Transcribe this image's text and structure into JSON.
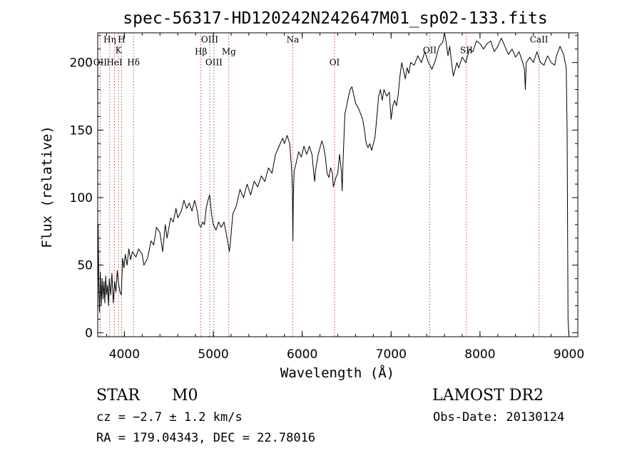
{
  "chart_data": {
    "type": "line",
    "title": "spec-56317-HD120242N242647M01_sp02-133.fits",
    "xlabel": "Wavelength (Å)",
    "ylabel": "Flux (relative)",
    "xlim": [
      3700,
      9100
    ],
    "ylim": [
      -3,
      222
    ],
    "xticks": [
      4000,
      5000,
      6000,
      7000,
      8000,
      9000
    ],
    "yticks": [
      0,
      50,
      100,
      150,
      200
    ],
    "grid": false,
    "series": [
      {
        "points": [
          [
            3700,
            20
          ],
          [
            3705,
            80
          ],
          [
            3712,
            35
          ],
          [
            3720,
            15
          ],
          [
            3730,
            45
          ],
          [
            3740,
            20
          ],
          [
            3750,
            40
          ],
          [
            3760,
            25
          ],
          [
            3770,
            38
          ],
          [
            3780,
            22
          ],
          [
            3790,
            42
          ],
          [
            3800,
            28
          ],
          [
            3810,
            35
          ],
          [
            3820,
            20
          ],
          [
            3830,
            40
          ],
          [
            3845,
            28
          ],
          [
            3860,
            44
          ],
          [
            3875,
            22
          ],
          [
            3890,
            38
          ],
          [
            3905,
            30
          ],
          [
            3920,
            46
          ],
          [
            3935,
            36
          ],
          [
            3950,
            30
          ],
          [
            3965,
            28
          ],
          [
            3980,
            55
          ],
          [
            3995,
            48
          ],
          [
            4010,
            58
          ],
          [
            4030,
            50
          ],
          [
            4050,
            62
          ],
          [
            4070,
            54
          ],
          [
            4090,
            60
          ],
          [
            4110,
            58
          ],
          [
            4130,
            56
          ],
          [
            4160,
            62
          ],
          [
            4200,
            58
          ],
          [
            4220,
            50
          ],
          [
            4260,
            55
          ],
          [
            4300,
            68
          ],
          [
            4330,
            65
          ],
          [
            4360,
            78
          ],
          [
            4400,
            74
          ],
          [
            4430,
            60
          ],
          [
            4460,
            80
          ],
          [
            4480,
            70
          ],
          [
            4520,
            85
          ],
          [
            4550,
            82
          ],
          [
            4580,
            92
          ],
          [
            4600,
            85
          ],
          [
            4640,
            90
          ],
          [
            4670,
            98
          ],
          [
            4700,
            92
          ],
          [
            4730,
            96
          ],
          [
            4760,
            90
          ],
          [
            4790,
            98
          ],
          [
            4820,
            90
          ],
          [
            4840,
            80
          ],
          [
            4860,
            78
          ],
          [
            4880,
            82
          ],
          [
            4900,
            80
          ],
          [
            4920,
            92
          ],
          [
            4940,
            98
          ],
          [
            4960,
            102
          ],
          [
            4980,
            88
          ],
          [
            5000,
            80
          ],
          [
            5030,
            76
          ],
          [
            5060,
            82
          ],
          [
            5090,
            78
          ],
          [
            5120,
            82
          ],
          [
            5150,
            72
          ],
          [
            5180,
            60
          ],
          [
            5190,
            65
          ],
          [
            5220,
            88
          ],
          [
            5260,
            94
          ],
          [
            5300,
            106
          ],
          [
            5340,
            100
          ],
          [
            5380,
            110
          ],
          [
            5420,
            102
          ],
          [
            5460,
            112
          ],
          [
            5500,
            108
          ],
          [
            5540,
            116
          ],
          [
            5580,
            112
          ],
          [
            5620,
            122
          ],
          [
            5660,
            118
          ],
          [
            5700,
            132
          ],
          [
            5740,
            138
          ],
          [
            5780,
            144
          ],
          [
            5800,
            140
          ],
          [
            5830,
            146
          ],
          [
            5860,
            140
          ],
          [
            5880,
            122
          ],
          [
            5890,
            106
          ],
          [
            5895,
            68
          ],
          [
            5900,
            100
          ],
          [
            5910,
            120
          ],
          [
            5930,
            125
          ],
          [
            5960,
            134
          ],
          [
            5990,
            130
          ],
          [
            6020,
            138
          ],
          [
            6050,
            132
          ],
          [
            6080,
            138
          ],
          [
            6110,
            132
          ],
          [
            6130,
            118
          ],
          [
            6140,
            112
          ],
          [
            6150,
            120
          ],
          [
            6180,
            132
          ],
          [
            6220,
            142
          ],
          [
            6240,
            138
          ],
          [
            6260,
            130
          ],
          [
            6280,
            118
          ],
          [
            6300,
            115
          ],
          [
            6320,
            122
          ],
          [
            6340,
            118
          ],
          [
            6350,
            108
          ],
          [
            6360,
            110
          ],
          [
            6380,
            115
          ],
          [
            6400,
            118
          ],
          [
            6420,
            132
          ],
          [
            6440,
            120
          ],
          [
            6450,
            105
          ],
          [
            6460,
            128
          ],
          [
            6480,
            162
          ],
          [
            6500,
            168
          ],
          [
            6520,
            175
          ],
          [
            6540,
            180
          ],
          [
            6560,
            182
          ],
          [
            6580,
            176
          ],
          [
            6600,
            170
          ],
          [
            6640,
            165
          ],
          [
            6680,
            158
          ],
          [
            6700,
            150
          ],
          [
            6720,
            140
          ],
          [
            6740,
            137
          ],
          [
            6760,
            140
          ],
          [
            6780,
            135
          ],
          [
            6800,
            140
          ],
          [
            6820,
            145
          ],
          [
            6840,
            160
          ],
          [
            6860,
            175
          ],
          [
            6880,
            180
          ],
          [
            6900,
            172
          ],
          [
            6920,
            180
          ],
          [
            6950,
            175
          ],
          [
            6980,
            178
          ],
          [
            7000,
            158
          ],
          [
            7020,
            168
          ],
          [
            7040,
            172
          ],
          [
            7060,
            168
          ],
          [
            7080,
            176
          ],
          [
            7100,
            190
          ],
          [
            7120,
            200
          ],
          [
            7140,
            194
          ],
          [
            7160,
            188
          ],
          [
            7180,
            196
          ],
          [
            7200,
            192
          ],
          [
            7220,
            200
          ],
          [
            7260,
            198
          ],
          [
            7300,
            205
          ],
          [
            7340,
            200
          ],
          [
            7380,
            208
          ],
          [
            7420,
            200
          ],
          [
            7460,
            195
          ],
          [
            7500,
            202
          ],
          [
            7540,
            212
          ],
          [
            7580,
            215
          ],
          [
            7600,
            222
          ],
          [
            7620,
            215
          ],
          [
            7640,
            205
          ],
          [
            7660,
            212
          ],
          [
            7680,
            200
          ],
          [
            7700,
            190
          ],
          [
            7720,
            195
          ],
          [
            7740,
            200
          ],
          [
            7760,
            196
          ],
          [
            7800,
            204
          ],
          [
            7840,
            200
          ],
          [
            7880,
            210
          ],
          [
            7920,
            208
          ],
          [
            7960,
            216
          ],
          [
            8000,
            214
          ],
          [
            8040,
            210
          ],
          [
            8080,
            214
          ],
          [
            8120,
            216
          ],
          [
            8160,
            208
          ],
          [
            8200,
            212
          ],
          [
            8240,
            218
          ],
          [
            8280,
            212
          ],
          [
            8320,
            206
          ],
          [
            8360,
            210
          ],
          [
            8400,
            204
          ],
          [
            8440,
            208
          ],
          [
            8480,
            200
          ],
          [
            8500,
            195
          ],
          [
            8510,
            180
          ],
          [
            8520,
            200
          ],
          [
            8560,
            204
          ],
          [
            8600,
            200
          ],
          [
            8640,
            208
          ],
          [
            8680,
            200
          ],
          [
            8720,
            198
          ],
          [
            8760,
            205
          ],
          [
            8800,
            200
          ],
          [
            8840,
            198
          ],
          [
            8860,
            205
          ],
          [
            8900,
            212
          ],
          [
            8940,
            206
          ],
          [
            8970,
            196
          ],
          [
            8980,
            150
          ],
          [
            8990,
            10
          ],
          [
            8998,
            0
          ]
        ]
      }
    ],
    "annotations": [
      {
        "label": "OII",
        "x": 3727,
        "y": 198
      },
      {
        "label": "Hη",
        "x": 3835,
        "y": 215
      },
      {
        "label": "HeI",
        "x": 3889,
        "y": 198
      },
      {
        "label": "K",
        "x": 3934,
        "y": 207
      },
      {
        "label": "H",
        "x": 3969,
        "y": 215
      },
      {
        "label": "Hδ",
        "x": 4102,
        "y": 198
      },
      {
        "label": "Hβ",
        "x": 4861,
        "y": 206
      },
      {
        "label": "OIII",
        "x": 4959,
        "y": 215
      },
      {
        "label": "OIII",
        "x": 5007,
        "y": 198
      },
      {
        "label": "Mg",
        "x": 5175,
        "y": 206
      },
      {
        "label": "Na",
        "x": 5894,
        "y": 215
      },
      {
        "label": "OI",
        "x": 6364,
        "y": 198
      },
      {
        "label": "OII",
        "x": 7435,
        "y": 207
      },
      {
        "label": "SII",
        "x": 7847,
        "y": 207
      },
      {
        "label": "CaII",
        "x": 8664,
        "y": 215
      }
    ]
  },
  "info": {
    "class": "STAR",
    "subclass": "M0",
    "cz": "cz = −2.7 ± 1.2 km/s",
    "coords": "RA = 179.04343, DEC =  22.78016",
    "survey": "LAMOST DR2",
    "obs_date": "Obs-Date: 20130124"
  },
  "colors": {
    "spectrum": "#000000",
    "line_marker": "#b22222"
  }
}
